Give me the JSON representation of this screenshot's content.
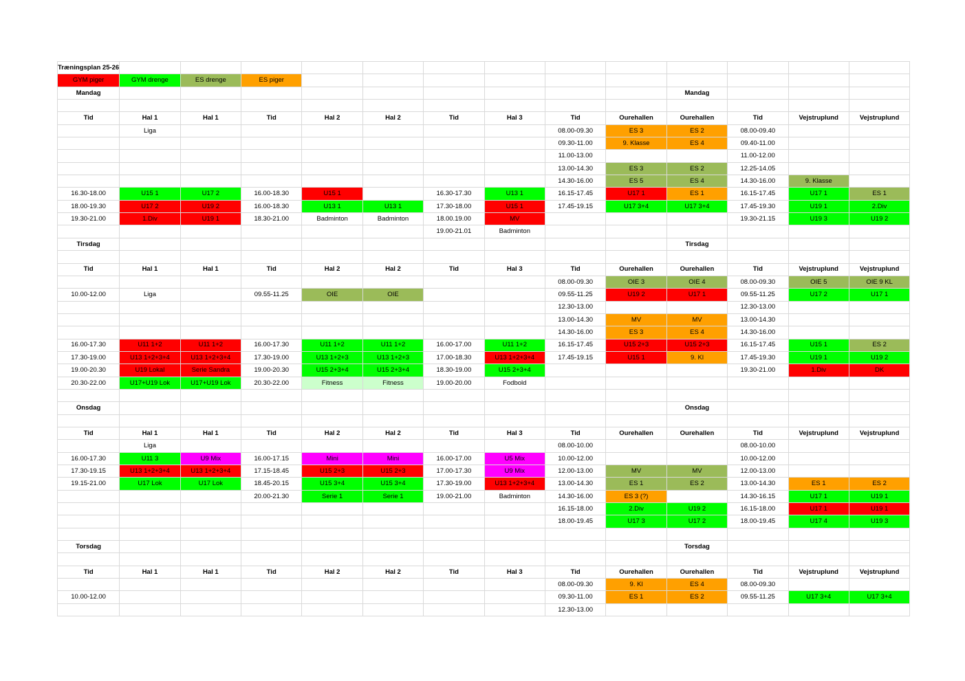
{
  "title": "Træningsplan 25-26",
  "legend": [
    {
      "label": "GYM piger",
      "color": "#ff0000"
    },
    {
      "label": "GYM drenge",
      "color": "#00ff00"
    },
    {
      "label": "ES drenge",
      "color": "#9bbb59"
    },
    {
      "label": "ES piger",
      "color": "#ffa000"
    }
  ],
  "grid": [
    [
      {
        "t": "Træningsplan 25-26",
        "b": 1
      },
      "",
      "",
      "",
      "",
      "",
      "",
      "",
      "",
      "",
      "",
      "",
      "",
      ""
    ],
    [
      {
        "t": "GYM piger",
        "c": "R"
      },
      {
        "t": "GYM drenge",
        "c": "G"
      },
      {
        "t": "ES drenge",
        "c": "L"
      },
      {
        "t": "ES piger",
        "c": "O"
      },
      "",
      "",
      "",
      "",
      "",
      "",
      "",
      "",
      "",
      ""
    ],
    [
      {
        "t": "Mandag",
        "b": 1
      },
      "",
      "",
      "",
      "",
      "",
      "",
      "",
      "",
      "",
      {
        "t": "Mandag",
        "b": 1
      },
      "",
      "",
      ""
    ],
    [
      "",
      "",
      "",
      "",
      "",
      "",
      "",
      "",
      "",
      "",
      "",
      "",
      "",
      ""
    ],
    [
      {
        "t": "Tid",
        "b": 1
      },
      {
        "t": "Hal 1",
        "b": 1
      },
      {
        "t": "Hal 1",
        "b": 1
      },
      {
        "t": "Tid",
        "b": 1
      },
      {
        "t": "Hal 2",
        "b": 1
      },
      {
        "t": "Hal 2",
        "b": 1
      },
      {
        "t": "Tid",
        "b": 1
      },
      {
        "t": "Hal 3",
        "b": 1
      },
      {
        "t": "Tid",
        "b": 1
      },
      {
        "t": "Ourehallen",
        "b": 1
      },
      {
        "t": "Ourehallen",
        "b": 1
      },
      {
        "t": "Tid",
        "b": 1
      },
      {
        "t": "Vejstruplund",
        "b": 1
      },
      {
        "t": "Vejstruplund",
        "b": 1
      }
    ],
    [
      "",
      "Liga",
      "",
      "",
      "",
      "",
      "",
      "",
      "08.00-09.30",
      {
        "t": "ES 3",
        "c": "O"
      },
      {
        "t": "ES 2",
        "c": "O"
      },
      "08.00-09.40",
      "",
      ""
    ],
    [
      "",
      "",
      "",
      "",
      "",
      "",
      "",
      "",
      "09.30-11.00",
      {
        "t": "9. Klasse",
        "c": "O"
      },
      {
        "t": "ES 4",
        "c": "O"
      },
      "09.40-11.00",
      "",
      ""
    ],
    [
      "",
      "",
      "",
      "",
      "",
      "",
      "",
      "",
      "11.00-13.00",
      "",
      "",
      "11.00-12.00",
      "",
      ""
    ],
    [
      "",
      "",
      "",
      "",
      "",
      "",
      "",
      "",
      "13.00-14.30",
      {
        "t": "ES 3",
        "c": "L"
      },
      {
        "t": "ES 2",
        "c": "L"
      },
      "12.25-14.05",
      "",
      ""
    ],
    [
      "",
      "",
      "",
      "",
      "",
      "",
      "",
      "",
      "14.30-16.00",
      {
        "t": "ES 5",
        "c": "L"
      },
      {
        "t": "ES 4",
        "c": "L"
      },
      "14.30-16.00",
      {
        "t": "9. Klasse",
        "c": "L"
      },
      ""
    ],
    [
      "16.30-18.00",
      {
        "t": "U15 1",
        "c": "G"
      },
      {
        "t": "U17 2",
        "c": "G"
      },
      "16.00-18.30",
      {
        "t": "U15 1",
        "c": "R"
      },
      "",
      "16.30-17.30",
      {
        "t": "U13 1",
        "c": "G"
      },
      "16.15-17.45",
      {
        "t": "U17 1",
        "c": "R"
      },
      {
        "t": "ES 1",
        "c": "O"
      },
      "16.15-17.45",
      {
        "t": "U17 1",
        "c": "G"
      },
      {
        "t": "ES 1",
        "c": "L"
      }
    ],
    [
      "18.00-19.30",
      {
        "t": "U17 2",
        "c": "R"
      },
      {
        "t": "U19 2",
        "c": "R"
      },
      "16.00-18.30",
      {
        "t": "U13 1",
        "c": "G"
      },
      {
        "t": "U13 1",
        "c": "G"
      },
      "17.30-18.00",
      {
        "t": "U15 1",
        "c": "R"
      },
      "17.45-19.15",
      {
        "t": "U17 3+4",
        "c": "G"
      },
      {
        "t": "U17 3+4",
        "c": "G"
      },
      "17.45-19.30",
      {
        "t": "U19 1",
        "c": "G"
      },
      {
        "t": "2.Div",
        "c": "G"
      }
    ],
    [
      "19.30-21.00",
      {
        "t": "1.Div",
        "c": "R"
      },
      {
        "t": "U19 1",
        "c": "R"
      },
      "18.30-21.00",
      "Badminton",
      "Badminton",
      "18.00.19.00",
      {
        "t": "MV",
        "c": "R"
      },
      "",
      "",
      "",
      "19.30-21.15",
      {
        "t": "U19 3",
        "c": "G"
      },
      {
        "t": "U19 2",
        "c": "G"
      }
    ],
    [
      "",
      "",
      "",
      "",
      "",
      "",
      "19.00-21.01",
      "Badminton",
      "",
      "",
      "",
      "",
      "",
      ""
    ],
    [
      {
        "t": "Tirsdag",
        "b": 1
      },
      "",
      "",
      "",
      "",
      "",
      "",
      "",
      "",
      "",
      {
        "t": "Tirsdag",
        "b": 1
      },
      "",
      "",
      ""
    ],
    [
      "",
      "",
      "",
      "",
      "",
      "",
      "",
      "",
      "",
      "",
      "",
      "",
      "",
      ""
    ],
    [
      {
        "t": "Tid",
        "b": 1
      },
      {
        "t": "Hal 1",
        "b": 1
      },
      {
        "t": "Hal 1",
        "b": 1
      },
      {
        "t": "Tid",
        "b": 1
      },
      {
        "t": "Hal 2",
        "b": 1
      },
      {
        "t": "Hal 2",
        "b": 1
      },
      {
        "t": "Tid",
        "b": 1
      },
      {
        "t": "Hal 3",
        "b": 1
      },
      {
        "t": "Tid",
        "b": 1
      },
      {
        "t": "Ourehallen",
        "b": 1
      },
      {
        "t": "Ourehallen",
        "b": 1
      },
      {
        "t": "Tid",
        "b": 1
      },
      {
        "t": "Vejstruplund",
        "b": 1
      },
      {
        "t": "Vejstruplund",
        "b": 1
      }
    ],
    [
      "",
      "",
      "",
      "",
      "",
      "",
      "",
      "",
      "08.00-09.30",
      {
        "t": "OIE  3",
        "c": "L"
      },
      {
        "t": "OIE 4",
        "c": "L"
      },
      "08.00-09.30",
      {
        "t": "OIE 5",
        "c": "L"
      },
      {
        "t": "OIE 9 KL",
        "c": "L"
      }
    ],
    [
      "10.00-12.00",
      "Liga",
      "",
      "09.55-11.25",
      {
        "t": "OIE",
        "c": "L"
      },
      {
        "t": "OIE",
        "c": "L"
      },
      "",
      "",
      "09.55-11.25",
      {
        "t": "U19 2",
        "c": "R"
      },
      {
        "t": "U17 1",
        "c": "R"
      },
      "09.55-11.25",
      {
        "t": "U17 2",
        "c": "G"
      },
      {
        "t": "U17 1",
        "c": "G"
      }
    ],
    [
      "",
      "",
      "",
      "",
      "",
      "",
      "",
      "",
      "12.30-13.00",
      "",
      "",
      "12.30-13.00",
      "",
      ""
    ],
    [
      "",
      "",
      "",
      "",
      "",
      "",
      "",
      "",
      "13.00-14.30",
      {
        "t": "MV",
        "c": "O"
      },
      {
        "t": "MV",
        "c": "O"
      },
      "13.00-14.30",
      "",
      ""
    ],
    [
      "",
      "",
      "",
      "",
      "",
      "",
      "",
      "",
      "14.30-16.00",
      {
        "t": "ES 3",
        "c": "O"
      },
      {
        "t": "ES 4",
        "c": "O"
      },
      "14.30-16.00",
      "",
      ""
    ],
    [
      "16.00-17.30",
      {
        "t": "U11 1+2",
        "c": "R"
      },
      {
        "t": "U11 1+2",
        "c": "R"
      },
      "16.00-17.30",
      {
        "t": "U11 1+2",
        "c": "G"
      },
      {
        "t": "U11 1+2",
        "c": "G"
      },
      "16.00-17.00",
      {
        "t": "U11 1+2",
        "c": "G"
      },
      "16.15-17.45",
      {
        "t": "U15 2+3",
        "c": "R"
      },
      {
        "t": "U15 2+3",
        "c": "R"
      },
      "16.15-17.45",
      {
        "t": "U15 1",
        "c": "G"
      },
      {
        "t": "ES 2",
        "c": "L"
      }
    ],
    [
      "17.30-19.00",
      {
        "t": "U13 1+2+3+4",
        "c": "R"
      },
      {
        "t": "U13 1+2+3+4",
        "c": "R"
      },
      "17.30-19.00",
      {
        "t": "U13 1+2+3",
        "c": "G"
      },
      {
        "t": "U13 1+2+3",
        "c": "G"
      },
      "17.00-18.30",
      {
        "t": "U13 1+2+3+4",
        "c": "R"
      },
      "17.45-19.15",
      {
        "t": "U15 1",
        "c": "R"
      },
      {
        "t": "9. Kl",
        "c": "O"
      },
      "17.45-19.30",
      {
        "t": "U19 1",
        "c": "G"
      },
      {
        "t": "U19 2",
        "c": "G"
      }
    ],
    [
      "19.00-20.30",
      {
        "t": "U19 Lokal",
        "c": "R"
      },
      {
        "t": "Serie Sandra",
        "c": "R"
      },
      "19.00-20.30",
      {
        "t": "U15 2+3+4",
        "c": "G"
      },
      {
        "t": "U15 2+3+4",
        "c": "G"
      },
      "18.30-19.00",
      {
        "t": "U15 2+3+4",
        "c": "G"
      },
      "",
      "",
      "",
      "19.30-21.00",
      {
        "t": "1.Div",
        "c": "R"
      },
      {
        "t": "DK",
        "c": "R"
      }
    ],
    [
      "20.30-22.00",
      {
        "t": "U17+U19 Lok",
        "c": "G"
      },
      {
        "t": "U17+U19 Lok",
        "c": "G"
      },
      "20.30-22.00",
      {
        "t": "Fitness",
        "c": "P"
      },
      {
        "t": "Fitness",
        "c": "P"
      },
      "19.00-20.00",
      "Fodbold",
      "",
      "",
      "",
      "",
      "",
      ""
    ],
    [
      "",
      "",
      "",
      "",
      "",
      "",
      "",
      "",
      "",
      "",
      "",
      "",
      "",
      ""
    ],
    [
      {
        "t": "Onsdag",
        "b": 1
      },
      "",
      "",
      "",
      "",
      "",
      "",
      "",
      "",
      "",
      {
        "t": "Onsdag",
        "b": 1
      },
      "",
      "",
      ""
    ],
    [
      "",
      "",
      "",
      "",
      "",
      "",
      "",
      "",
      "",
      "",
      "",
      "",
      "",
      ""
    ],
    [
      {
        "t": "Tid",
        "b": 1
      },
      {
        "t": "Hal 1",
        "b": 1
      },
      {
        "t": "Hal 1",
        "b": 1
      },
      {
        "t": "Tid",
        "b": 1
      },
      {
        "t": "Hal 2",
        "b": 1
      },
      {
        "t": "Hal 2",
        "b": 1
      },
      {
        "t": "Tid",
        "b": 1
      },
      {
        "t": "Hal 3",
        "b": 1
      },
      {
        "t": "Tid",
        "b": 1
      },
      {
        "t": "Ourehallen",
        "b": 1
      },
      {
        "t": "Ourehallen",
        "b": 1
      },
      {
        "t": "Tid",
        "b": 1
      },
      {
        "t": "Vejstruplund",
        "b": 1
      },
      {
        "t": "Vejstruplund",
        "b": 1
      }
    ],
    [
      "",
      "Liga",
      "",
      "",
      "",
      "",
      "",
      "",
      "08.00-10.00",
      "",
      "",
      "08.00-10.00",
      "",
      ""
    ],
    [
      "16.00-17.30",
      {
        "t": "U11 3",
        "c": "G"
      },
      {
        "t": "U9 Mix",
        "c": "M"
      },
      "16.00-17.15",
      {
        "t": "Mini",
        "c": "M"
      },
      {
        "t": "Mini",
        "c": "M"
      },
      "16.00-17.00",
      {
        "t": "U5 Mix",
        "c": "M"
      },
      "10.00-12.00",
      "",
      "",
      "10.00-12.00",
      "",
      ""
    ],
    [
      "17.30-19.15",
      {
        "t": "U13 1+2+3+4",
        "c": "R"
      },
      {
        "t": "U13 1+2+3+4",
        "c": "R"
      },
      "17.15-18.45",
      {
        "t": "U15 2+3",
        "c": "R"
      },
      {
        "t": "U15 2+3",
        "c": "R"
      },
      "17.00-17.30",
      {
        "t": "U9 Mix",
        "c": "M"
      },
      "12.00-13.00",
      {
        "t": "MV",
        "c": "L"
      },
      {
        "t": "MV",
        "c": "L"
      },
      "12.00-13.00",
      "",
      ""
    ],
    [
      "19.15-21.00",
      {
        "t": "U17 Lok",
        "c": "G"
      },
      {
        "t": "U17 Lok",
        "c": "G"
      },
      "18.45-20.15",
      {
        "t": "U15 3+4",
        "c": "G"
      },
      {
        "t": "U15 3+4",
        "c": "G"
      },
      "17.30-19.00",
      {
        "t": "U13 1+2+3+4",
        "c": "R"
      },
      "13.00-14.30",
      {
        "t": "ES 1",
        "c": "L"
      },
      {
        "t": "ES 2",
        "c": "L"
      },
      "13.00-14.30",
      {
        "t": "ES 1",
        "c": "O"
      },
      {
        "t": "ES 2",
        "c": "O"
      }
    ],
    [
      "",
      "",
      "",
      "20.00-21.30",
      {
        "t": "Serie 1",
        "c": "G"
      },
      {
        "t": "Serie 1",
        "c": "G"
      },
      "19.00-21.00",
      "Badminton",
      "14.30-16.00",
      {
        "t": "ES 3 (?)",
        "c": "O"
      },
      "",
      "14.30-16.15",
      {
        "t": "U17 1",
        "c": "G"
      },
      {
        "t": "U19 1",
        "c": "G"
      }
    ],
    [
      "",
      "",
      "",
      "",
      "",
      "",
      "",
      "",
      "16.15-18.00",
      {
        "t": "2.Div",
        "c": "G"
      },
      {
        "t": "U19 2",
        "c": "G"
      },
      "16.15-18.00",
      {
        "t": "U17 1",
        "c": "R"
      },
      {
        "t": "U19 1",
        "c": "R"
      }
    ],
    [
      "",
      "",
      "",
      "",
      "",
      "",
      "",
      "",
      "18.00-19.45",
      {
        "t": "U17 3",
        "c": "G"
      },
      {
        "t": "U17 2",
        "c": "G"
      },
      "18.00-19.45",
      {
        "t": "U17 4",
        "c": "G"
      },
      {
        "t": "U19 3",
        "c": "G"
      }
    ],
    [
      "",
      "",
      "",
      "",
      "",
      "",
      "",
      "",
      "",
      "",
      "",
      "",
      "",
      ""
    ],
    [
      {
        "t": "Torsdag",
        "b": 1
      },
      "",
      "",
      "",
      "",
      "",
      "",
      "",
      "",
      "",
      {
        "t": "Torsdag",
        "b": 1
      },
      "",
      "",
      ""
    ],
    [
      "",
      "",
      "",
      "",
      "",
      "",
      "",
      "",
      "",
      "",
      "",
      "",
      "",
      ""
    ],
    [
      {
        "t": "Tid",
        "b": 1
      },
      {
        "t": "Hal 1",
        "b": 1
      },
      {
        "t": "Hal 1",
        "b": 1
      },
      {
        "t": "Tid",
        "b": 1
      },
      {
        "t": "Hal 2",
        "b": 1
      },
      {
        "t": "Hal 2",
        "b": 1
      },
      {
        "t": "Tid",
        "b": 1
      },
      {
        "t": "Hal 3",
        "b": 1
      },
      {
        "t": "Tid",
        "b": 1
      },
      {
        "t": "Ourehallen",
        "b": 1
      },
      {
        "t": "Ourehallen",
        "b": 1
      },
      {
        "t": "Tid",
        "b": 1
      },
      {
        "t": "Vejstruplund",
        "b": 1
      },
      {
        "t": "Vejstruplund",
        "b": 1
      }
    ],
    [
      "",
      "",
      "",
      "",
      "",
      "",
      "",
      "",
      "08.00-09.30",
      {
        "t": "9. Kl",
        "c": "O"
      },
      {
        "t": "ES 4",
        "c": "O"
      },
      "08.00-09.30",
      "",
      ""
    ],
    [
      "10.00-12.00",
      "",
      "",
      "",
      "",
      "",
      "",
      "",
      "09.30-11.00",
      {
        "t": "ES 1",
        "c": "O"
      },
      {
        "t": "ES 2",
        "c": "O"
      },
      "09.55-11.25",
      {
        "t": "U17 3+4",
        "c": "G"
      },
      {
        "t": "U17 3+4",
        "c": "G"
      }
    ],
    [
      "",
      "",
      "",
      "",
      "",
      "",
      "",
      "",
      "12.30-13.00",
      "",
      "",
      "",
      "",
      ""
    ]
  ]
}
